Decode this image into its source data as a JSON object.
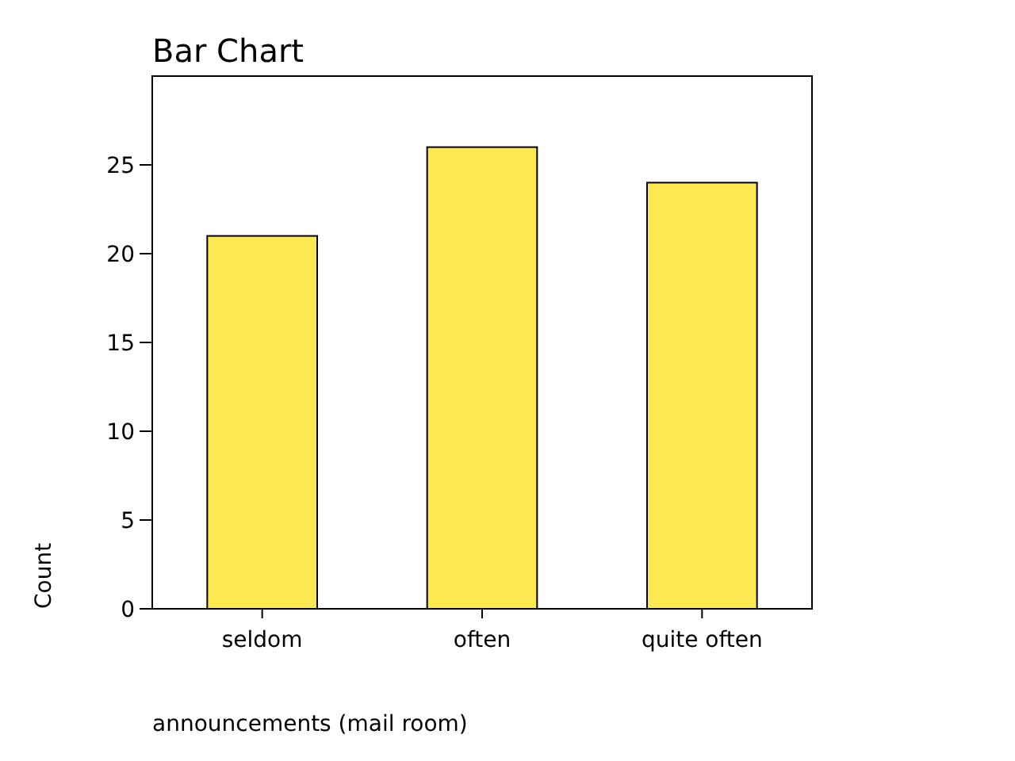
{
  "chart_data": {
    "type": "bar",
    "title": "Bar Chart",
    "xlabel": "announcements (mail room)",
    "ylabel": "Count",
    "categories": [
      "seldom",
      "often",
      "quite often"
    ],
    "values": [
      21,
      26,
      24
    ],
    "color": "#fce850",
    "ylim": [
      0,
      30
    ],
    "yticks": [
      0,
      5,
      10,
      15,
      20,
      25
    ],
    "grid": false
  }
}
